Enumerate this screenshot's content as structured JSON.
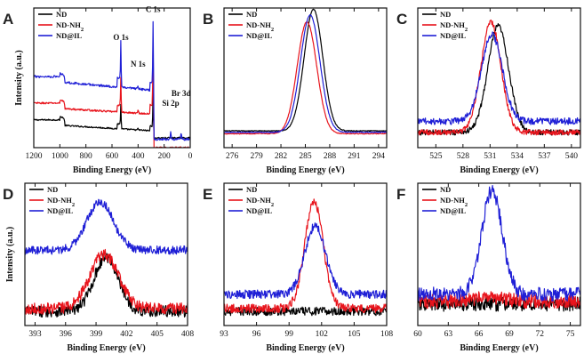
{
  "chart_data": [
    {
      "type": "line",
      "panel": "A",
      "xlabel": "Binding Energy (eV)",
      "ylabel": "Intensity (a.u.)",
      "xlim": [
        1200,
        0
      ],
      "ylim": [
        0,
        100
      ],
      "xticks": [
        1200,
        1000,
        800,
        600,
        400,
        200,
        0
      ],
      "legend": [
        "ND",
        "ND-NH2",
        "ND@IL"
      ],
      "colors": [
        "#000000",
        "#e8141c",
        "#1f1fd6"
      ],
      "annotations": [
        {
          "text": "C 1s",
          "x": 285,
          "y": 97
        },
        {
          "text": "O 1s",
          "x": 532,
          "y": 77
        },
        {
          "text": "N 1s",
          "x": 400,
          "y": 58
        },
        {
          "text": "Si 2p",
          "x": 150,
          "y": 30
        },
        {
          "text": "Br 3d",
          "x": 70,
          "y": 37
        }
      ],
      "series": [
        {
          "name": "ND",
          "style": "survey",
          "params": {
            "base": 12,
            "rise": 6,
            "ramp": 4,
            "O": 14,
            "C": 28,
            "N": 1,
            "Si": 0,
            "Br": 0,
            "cAfter": 5,
            "noise": 0.5
          }
        },
        {
          "name": "ND-NH2",
          "style": "survey",
          "params": {
            "base": 24,
            "rise": 6,
            "ramp": 4,
            "O": 20,
            "C": 54,
            "N": 2,
            "Si": 0,
            "Br": 0,
            "cAfter": 24,
            "noise": 0.6
          }
        },
        {
          "name": "ND@IL",
          "style": "survey",
          "params": {
            "base": 41,
            "rise": 6,
            "ramp": 6,
            "O": 27,
            "C": 50,
            "N": 2,
            "Si": 6,
            "Br": 4,
            "cAfter": 35,
            "noise": 0.8
          }
        }
      ]
    },
    {
      "type": "line",
      "panel": "B",
      "xlabel": "Binding Energy (eV)",
      "ylabel": "",
      "xlim": [
        275,
        295
      ],
      "ylim": [
        0,
        100
      ],
      "xticks": [
        276,
        279,
        282,
        285,
        288,
        291,
        294
      ],
      "legend": [
        "ND",
        "ND-NH2",
        "ND@IL"
      ],
      "colors": [
        "#000000",
        "#e8141c",
        "#1f1fd6"
      ],
      "series": [
        {
          "name": "ND",
          "style": "peak",
          "params": {
            "base": 12,
            "center": 286.0,
            "height": 87,
            "sigma": 1.15,
            "noise": 0.3
          }
        },
        {
          "name": "ND-NH2",
          "style": "peak",
          "params": {
            "base": 10,
            "center": 285.2,
            "height": 80,
            "sigma": 1.2,
            "noise": 0.3
          }
        },
        {
          "name": "ND@IL",
          "style": "peak",
          "params": {
            "base": 11,
            "center": 285.6,
            "height": 84,
            "sigma": 1.2,
            "noise": 0.3
          }
        }
      ]
    },
    {
      "type": "line",
      "panel": "C",
      "xlabel": "Binding Energy (eV)",
      "ylabel": "",
      "xlim": [
        523,
        541
      ],
      "ylim": [
        0,
        100
      ],
      "xticks": [
        525,
        528,
        531,
        534,
        537,
        540
      ],
      "legend": [
        "ND",
        "ND-NH2",
        "ND@IL"
      ],
      "colors": [
        "#000000",
        "#e8141c",
        "#1f1fd6"
      ],
      "series": [
        {
          "name": "ND",
          "style": "peak",
          "params": {
            "base": 11,
            "center": 531.9,
            "height": 76,
            "sigma": 1.15,
            "noise": 2.0
          }
        },
        {
          "name": "ND-NH2",
          "style": "peak",
          "params": {
            "base": 11,
            "center": 531.1,
            "height": 79,
            "sigma": 1.1,
            "noise": 2.0
          }
        },
        {
          "name": "ND@IL",
          "style": "peak",
          "params": {
            "base": 19,
            "center": 531.2,
            "height": 62,
            "sigma": 1.15,
            "noise": 2.5
          }
        }
      ]
    },
    {
      "type": "line",
      "panel": "D",
      "xlabel": "Binding Energy (eV)",
      "ylabel": "Intensity (a.u.)",
      "xlim": [
        392,
        408
      ],
      "ylim": [
        0,
        100
      ],
      "xticks": [
        393,
        396,
        399,
        402,
        405,
        408
      ],
      "legend": [
        "ND",
        "ND-NH2",
        "ND@IL"
      ],
      "colors": [
        "#000000",
        "#e8141c",
        "#1f1fd6"
      ],
      "series": [
        {
          "name": "ND",
          "style": "peak",
          "params": {
            "base": 10,
            "center": 400.0,
            "height": 38,
            "sigma": 1.2,
            "noise": 4.0
          }
        },
        {
          "name": "ND-NH2",
          "style": "peak",
          "params": {
            "base": 12,
            "center": 399.8,
            "height": 38,
            "sigma": 1.4,
            "noise": 4.0
          }
        },
        {
          "name": "ND@IL",
          "style": "peak",
          "params": {
            "base": 53,
            "center": 399.4,
            "height": 34,
            "sigma": 1.3,
            "noise": 3.0
          }
        }
      ]
    },
    {
      "type": "line",
      "panel": "E",
      "xlabel": "Binding Energy (eV)",
      "ylabel": "",
      "xlim": [
        93,
        108
      ],
      "ylim": [
        0,
        100
      ],
      "xticks": [
        93,
        96,
        99,
        102,
        105,
        108
      ],
      "legend": [
        "ND",
        "ND-NH2",
        "ND@IL"
      ],
      "colors": [
        "#000000",
        "#e8141c",
        "#1f1fd6"
      ],
      "series": [
        {
          "name": "ND",
          "style": "peak",
          "params": {
            "base": 10,
            "center": 101,
            "height": 0,
            "sigma": 1,
            "noise": 3.0
          }
        },
        {
          "name": "ND-NH2",
          "style": "peak",
          "params": {
            "base": 12,
            "center": 101.3,
            "height": 75,
            "sigma": 0.85,
            "noise": 3.0
          }
        },
        {
          "name": "ND@IL",
          "style": "peak",
          "params": {
            "base": 22,
            "center": 101.4,
            "height": 48,
            "sigma": 0.95,
            "noise": 3.0
          }
        }
      ]
    },
    {
      "type": "line",
      "panel": "F",
      "xlabel": "Binding Energy (eV)",
      "ylabel": "",
      "xlim": [
        60,
        76
      ],
      "ylim": [
        0,
        100
      ],
      "xticks": [
        60,
        63,
        66,
        69,
        72,
        75
      ],
      "legend": [
        "ND",
        "ND-NH2",
        "ND@IL"
      ],
      "colors": [
        "#000000",
        "#e8141c",
        "#1f1fd6"
      ],
      "series": [
        {
          "name": "ND",
          "style": "peak",
          "params": {
            "base": 15,
            "center": 67,
            "height": 0,
            "sigma": 1,
            "noise": 5.0
          }
        },
        {
          "name": "ND-NH2",
          "style": "peak",
          "params": {
            "base": 17,
            "center": 67,
            "height": 3,
            "sigma": 1.5,
            "noise": 5.0
          }
        },
        {
          "name": "ND@IL",
          "style": "peak",
          "params": {
            "base": 22,
            "center": 67.3,
            "height": 73,
            "sigma": 1.0,
            "noise": 5.0
          }
        }
      ]
    }
  ]
}
